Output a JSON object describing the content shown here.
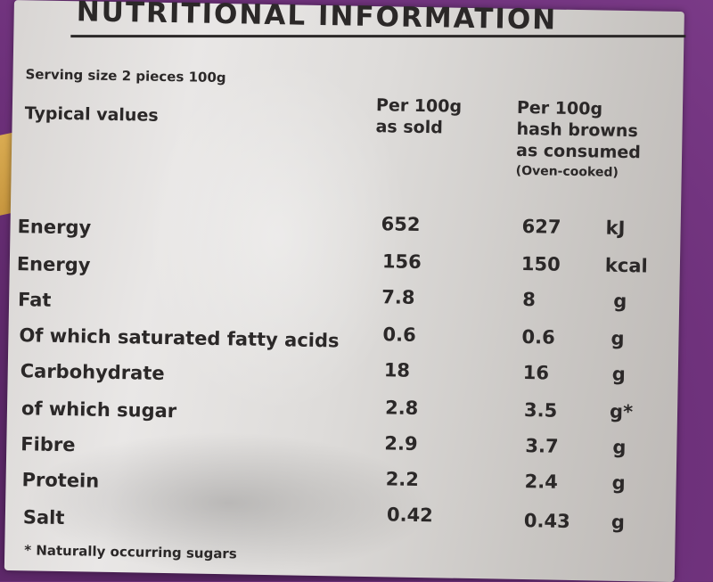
{
  "label": {
    "title": "NUTRITIONAL INFORMATION",
    "serving_size": "Serving size 2 pieces 100g",
    "typical_values": "Typical values",
    "col_as_sold": [
      "Per 100g",
      "as sold"
    ],
    "col_consumed": [
      "Per 100g",
      "hash browns",
      "as consumed"
    ],
    "col_consumed_note": "(Oven-cooked)",
    "rows": [
      {
        "name": "Energy",
        "sold": "652",
        "consumed": "627",
        "unit": "kJ"
      },
      {
        "name": "Energy",
        "sold": "156",
        "consumed": "150",
        "unit": "kcal"
      },
      {
        "name": "Fat",
        "sold": "7.8",
        "consumed": "8",
        "unit": "g"
      },
      {
        "name": "Of which saturated fatty acids",
        "sold": "0.6",
        "consumed": "0.6",
        "unit": "g"
      },
      {
        "name": "Carbohydrate",
        "sold": "18",
        "consumed": "16",
        "unit": "g"
      },
      {
        "name": "of which sugar",
        "sold": "2.8",
        "consumed": "3.5",
        "unit": "g*"
      },
      {
        "name": "Fibre",
        "sold": "2.9",
        "consumed": "3.7",
        "unit": "g"
      },
      {
        "name": "Protein",
        "sold": "2.2",
        "consumed": "2.4",
        "unit": "g"
      },
      {
        "name": "Salt",
        "sold": "0.42",
        "consumed": "0.43",
        "unit": "g"
      }
    ],
    "footnote": "* Naturally occurring sugars"
  },
  "colors": {
    "background_purple": "#6b2f78",
    "label_grey": "#dedcda",
    "ink": "#2b2828"
  }
}
